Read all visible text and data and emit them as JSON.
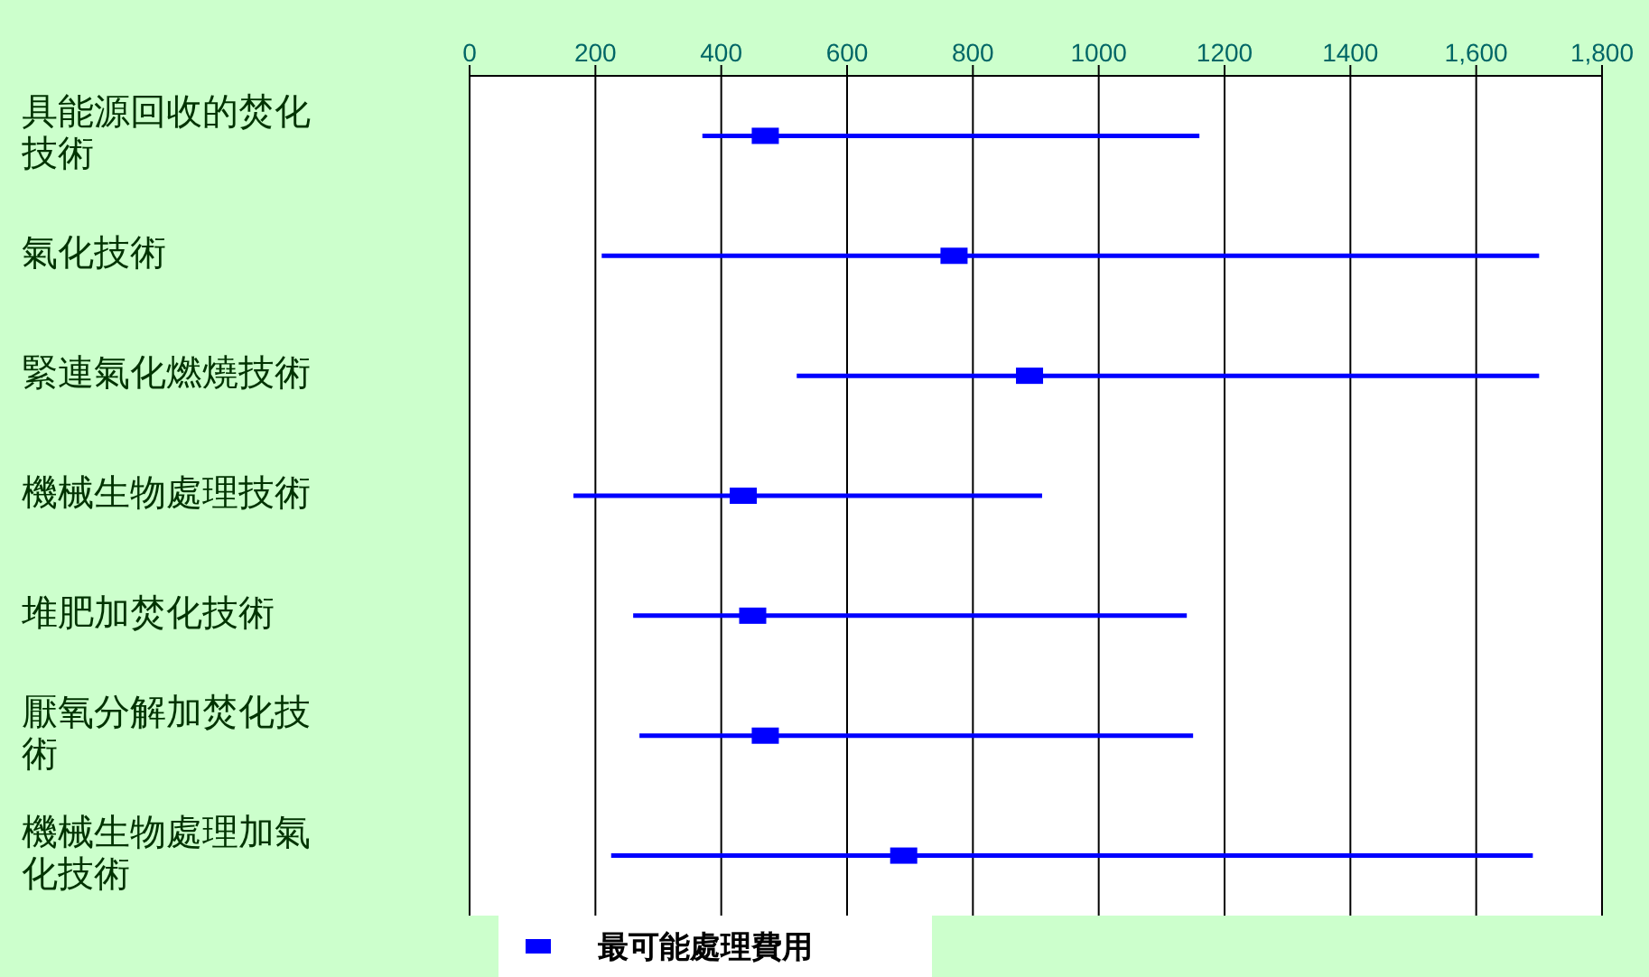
{
  "chart_data": {
    "type": "scatter",
    "orientation": "horizontal",
    "categories": [
      "具能源回收的焚化技術",
      "氣化技術",
      "緊連氣化燃燒技術",
      "機械生物處理技術",
      "堆肥加焚化技術",
      "厭氧分解加焚化技術",
      "機械生物處理加氣化技術"
    ],
    "series": [
      {
        "name": "最可能處理費用",
        "color": "#0000ff",
        "values": [
          470,
          770,
          890,
          435,
          450,
          470,
          690
        ],
        "errors": [
          [
            370,
            1160
          ],
          [
            210,
            1700
          ],
          [
            520,
            1700
          ],
          [
            165,
            910
          ],
          [
            260,
            1140
          ],
          [
            270,
            1150
          ],
          [
            225,
            1690
          ]
        ]
      }
    ],
    "xlim": [
      0,
      1800
    ],
    "xticks": [
      0,
      200,
      400,
      600,
      800,
      1000,
      1200,
      1400,
      {
        "value": 1600,
        "label": "1,600"
      },
      {
        "value": 1800,
        "label": "1,800"
      }
    ],
    "grid": "x",
    "legend": "bottom left",
    "marker": "square"
  }
}
